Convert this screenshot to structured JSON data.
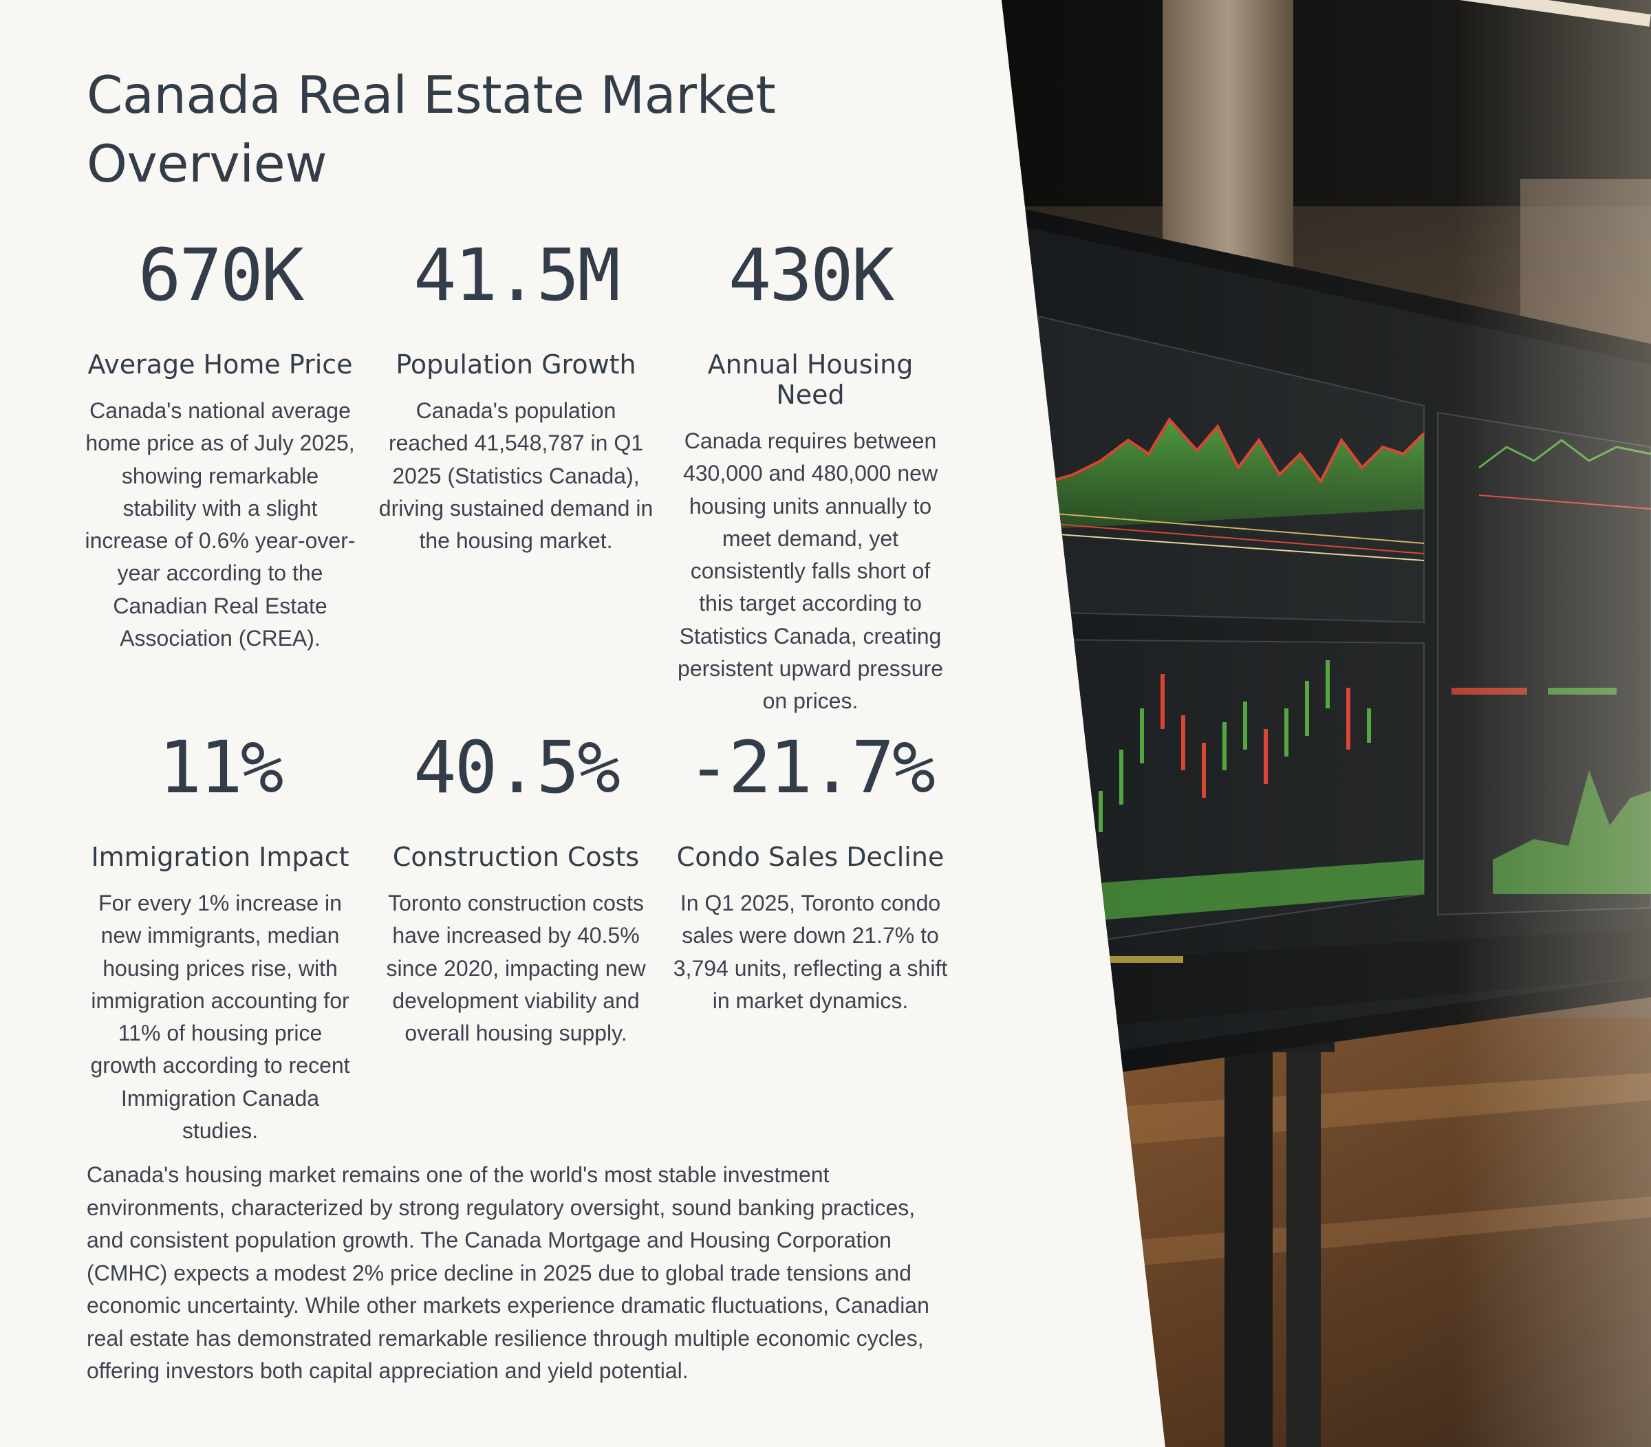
{
  "title": "Canada Real Estate Market Overview",
  "stats": [
    {
      "value": "670K",
      "label": "Average Home Price",
      "description": "Canada's national average home price as of July 2025, showing remarkable stability with a slight increase of 0.6% year-over-year according to the Canadian Real Estate Association (CREA)."
    },
    {
      "value": "41.5M",
      "label": "Population Growth",
      "description": "Canada's population reached 41,548,787 in Q1 2025 (Statistics Canada), driving sustained demand in the housing market."
    },
    {
      "value": "430K",
      "label": "Annual Housing Need",
      "description": "Canada requires between 430,000 and 480,000 new housing units annually to meet demand, yet consistently falls short of this target according to Statistics Canada, creating persistent upward pressure on prices."
    },
    {
      "value": "11%",
      "label": "Immigration Impact",
      "description": "For every 1% increase in new immigrants, median housing prices rise, with immigration accounting for 11% of housing price growth according to recent Immigration Canada studies."
    },
    {
      "value": "40.5%",
      "label": "Construction Costs",
      "description": "Toronto construction costs have increased by 40.5% since 2020, impacting new development viability and overall housing supply."
    },
    {
      "value": "-21.7%",
      "label": "Condo Sales Decline",
      "description": "In Q1 2025, Toronto condo sales were down 21.7% to 3,794 units, reflecting a shift in market dynamics."
    }
  ],
  "summary": "Canada's housing market remains one of the world's most stable investment environments, characterized by strong regulatory oversight, sound banking practices, and consistent population growth. The Canada Mortgage and Housing Corporation (CMHC) expects a modest 2% price decline in 2025 due to global trade tensions and economic uncertainty. While other markets experience dramatic fluctuations, Canadian real estate has demonstrated remarkable resilience through multiple economic cycles, offering investors both capital appreciation and yield potential.",
  "photo": {
    "subject": "trading-monitor-photo",
    "colors": {
      "positive": "#4fa53c",
      "negative": "#d8412f",
      "screen": "#171a1c"
    }
  }
}
